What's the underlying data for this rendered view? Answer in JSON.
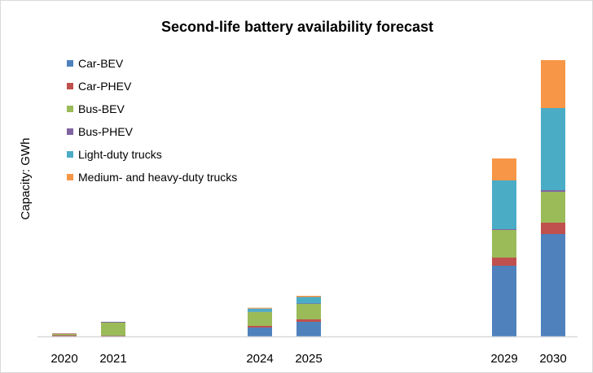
{
  "chart_data": {
    "type": "bar",
    "stacked": true,
    "title": "Second-life battery availability forecast",
    "xlabel": "",
    "ylabel": "Capacity: GWh",
    "value_note": "",
    "categories": [
      "2020",
      "2021",
      "2024",
      "2025",
      "2029",
      "2030"
    ],
    "x": [
      2020,
      2021,
      2024,
      2025,
      2029,
      2030
    ],
    "series": [
      {
        "name": "Car-BEV",
        "color": "#4f81bd",
        "values": [
          0.5,
          0.5,
          11,
          18,
          87,
          126
        ]
      },
      {
        "name": "Car-PHEV",
        "color": "#c0504d",
        "values": [
          1,
          0.5,
          2,
          3,
          10,
          14
        ]
      },
      {
        "name": "Bus-BEV",
        "color": "#9bbb59",
        "values": [
          1.5,
          16,
          17,
          19,
          34,
          38
        ]
      },
      {
        "name": "Bus-PHEV",
        "color": "#8064a2",
        "values": [
          0.5,
          1,
          0.3,
          0.5,
          1,
          2
        ]
      },
      {
        "name": "Light-duty trucks",
        "color": "#4bacc6",
        "values": [
          0,
          0,
          4,
          8,
          60,
          101
        ]
      },
      {
        "name": "Medium- and heavy-duty trucks",
        "color": "#f79646",
        "values": [
          0.3,
          0,
          1,
          1.5,
          27,
          59
        ]
      }
    ],
    "grid": false,
    "y_ticks_shown": false,
    "legend_placement": "top-left"
  }
}
